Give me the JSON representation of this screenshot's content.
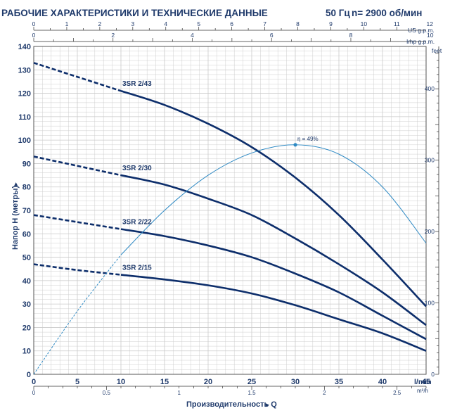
{
  "header": {
    "title": "РАБОЧИЕ ХАРАКТЕРИСТИКИ И ТЕХНИЧЕСКИЕ ДАННЫЕ",
    "frequency": "50 Гц",
    "speed": "n= 2900 об/мин"
  },
  "chart_data": {
    "type": "line",
    "xlabel": "Производительность Q",
    "ylabel": "Напор H (метры)",
    "x_unit": "l/min",
    "xlim": [
      0,
      45
    ],
    "ylim": [
      0,
      140
    ],
    "grid": true,
    "x_ticks": [
      0,
      5,
      10,
      15,
      20,
      25,
      30,
      35,
      40,
      45
    ],
    "y_ticks": [
      0,
      10,
      20,
      30,
      40,
      50,
      60,
      70,
      80,
      90,
      100,
      110,
      120,
      130,
      140
    ],
    "secondary_axes": {
      "us_gpm": {
        "unit": "US g.p.m.",
        "ticks": [
          0,
          1,
          2,
          3,
          4,
          5,
          6,
          7,
          8,
          9,
          10,
          11,
          12
        ]
      },
      "imp_gpm": {
        "unit": "Imp g.p.m.",
        "ticks": [
          0,
          2,
          4,
          6,
          8,
          10
        ]
      },
      "m3h": {
        "unit": "m³/h",
        "ticks": [
          0,
          0.5,
          1,
          1.5,
          2,
          2.5
        ]
      },
      "feet": {
        "unit": "feet",
        "ticks": [
          0,
          100,
          200,
          300,
          400
        ]
      }
    },
    "series": [
      {
        "name": "3SR 2/43",
        "dashed_until_x": 10,
        "x": [
          0,
          5,
          10,
          15,
          20,
          25,
          30,
          35,
          40,
          45
        ],
        "y": [
          133,
          127,
          121,
          115,
          107,
          97,
          84,
          68,
          49,
          29
        ]
      },
      {
        "name": "3SR 2/30",
        "dashed_until_x": 10,
        "x": [
          0,
          5,
          10,
          15,
          20,
          25,
          30,
          35,
          40,
          45
        ],
        "y": [
          93,
          89,
          85,
          81,
          75,
          68,
          58,
          47,
          35,
          21
        ]
      },
      {
        "name": "3SR 2/22",
        "dashed_until_x": 10,
        "x": [
          0,
          5,
          10,
          15,
          20,
          25,
          30,
          35,
          40,
          45
        ],
        "y": [
          68,
          65,
          62,
          59,
          55,
          50,
          43,
          35,
          25,
          15
        ]
      },
      {
        "name": "3SR 2/15",
        "dashed_until_x": 10,
        "x": [
          0,
          5,
          10,
          15,
          20,
          25,
          30,
          35,
          40,
          45
        ],
        "y": [
          47,
          44.5,
          42.5,
          40.5,
          38,
          34.5,
          29.5,
          23.5,
          17.5,
          10
        ]
      },
      {
        "name": "η",
        "dashed_until_x": 10,
        "x": [
          0,
          5,
          10,
          15,
          20,
          25,
          30,
          35,
          40,
          45
        ],
        "y": [
          0,
          27,
          51,
          70,
          85,
          94.5,
          98,
          94,
          80,
          56
        ]
      }
    ],
    "annotations": [
      {
        "text": "η = 49%",
        "x": 30,
        "y": 98
      }
    ],
    "colors": {
      "pump_curve": "#0d2e6b",
      "efficiency_curve": "#2f8ac4",
      "grid": "#c9c9c9",
      "text": "#1f3a6b"
    }
  }
}
